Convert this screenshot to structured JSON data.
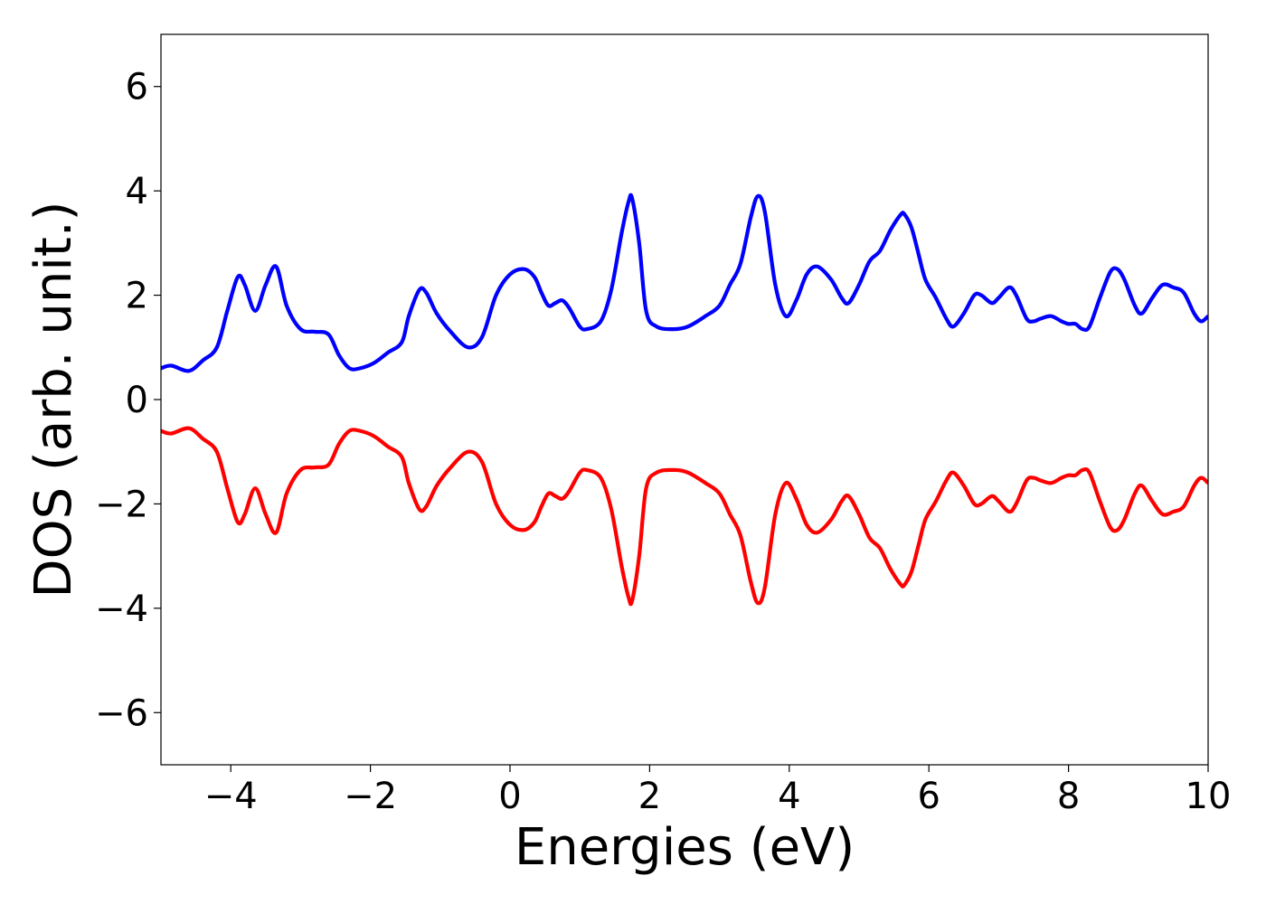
{
  "chart_data": {
    "type": "line",
    "title": "",
    "xlabel": "Energies (eV)",
    "ylabel": "DOS (arb. unit.)",
    "xlim": [
      -5,
      10
    ],
    "ylim": [
      -7,
      7
    ],
    "xticks": [
      -4,
      -2,
      0,
      2,
      4,
      6,
      8,
      10
    ],
    "yticks": [
      -6,
      -4,
      -2,
      0,
      2,
      4,
      6
    ],
    "xtick_labels": [
      "−4",
      "−2",
      "0",
      "2",
      "4",
      "6",
      "8",
      "10"
    ],
    "ytick_labels": [
      "−6",
      "−4",
      "−2",
      "0",
      "2",
      "4",
      "6"
    ],
    "grid": false,
    "legend": "none",
    "series": [
      {
        "color": "#0000ff",
        "x": [
          -5.0,
          -4.85,
          -4.6,
          -4.4,
          -4.2,
          -4.05,
          -3.9,
          -3.8,
          -3.65,
          -3.5,
          -3.35,
          -3.2,
          -3.0,
          -2.8,
          -2.6,
          -2.45,
          -2.3,
          -2.15,
          -1.95,
          -1.75,
          -1.55,
          -1.45,
          -1.3,
          -1.2,
          -1.05,
          -0.85,
          -0.6,
          -0.4,
          -0.2,
          0.0,
          0.2,
          0.35,
          0.45,
          0.55,
          0.65,
          0.75,
          0.85,
          1.0,
          1.1,
          1.3,
          1.45,
          1.6,
          1.7,
          1.75,
          1.85,
          1.95,
          2.1,
          2.35,
          2.55,
          2.8,
          3.0,
          3.15,
          3.3,
          3.45,
          3.55,
          3.65,
          3.8,
          3.95,
          4.1,
          4.25,
          4.4,
          4.6,
          4.75,
          4.85,
          5.0,
          5.15,
          5.3,
          5.45,
          5.6,
          5.65,
          5.75,
          5.85,
          5.95,
          6.1,
          6.25,
          6.35,
          6.5,
          6.65,
          6.75,
          6.9,
          7.0,
          7.15,
          7.25,
          7.4,
          7.5,
          7.6,
          7.75,
          7.9,
          8.0,
          8.1,
          8.2,
          8.3,
          8.45,
          8.6,
          8.7,
          8.8,
          8.95,
          9.05,
          9.2,
          9.35,
          9.5,
          9.65,
          9.8,
          9.9,
          10.0
        ],
        "y": [
          0.6,
          0.65,
          0.55,
          0.75,
          1.0,
          1.7,
          2.35,
          2.2,
          1.7,
          2.2,
          2.55,
          1.8,
          1.35,
          1.3,
          1.25,
          0.85,
          0.6,
          0.6,
          0.7,
          0.9,
          1.1,
          1.6,
          2.1,
          2.05,
          1.65,
          1.3,
          1.0,
          1.2,
          2.0,
          2.4,
          2.5,
          2.35,
          2.05,
          1.8,
          1.85,
          1.9,
          1.75,
          1.4,
          1.35,
          1.5,
          2.1,
          3.2,
          3.8,
          3.85,
          3.0,
          1.7,
          1.4,
          1.35,
          1.4,
          1.6,
          1.8,
          2.2,
          2.6,
          3.5,
          3.9,
          3.6,
          2.2,
          1.6,
          1.9,
          2.4,
          2.55,
          2.3,
          1.95,
          1.85,
          2.2,
          2.65,
          2.85,
          3.25,
          3.55,
          3.55,
          3.3,
          2.8,
          2.3,
          1.95,
          1.55,
          1.4,
          1.65,
          2.0,
          2.0,
          1.85,
          1.95,
          2.15,
          2.0,
          1.55,
          1.5,
          1.55,
          1.6,
          1.5,
          1.45,
          1.45,
          1.35,
          1.4,
          1.95,
          2.45,
          2.5,
          2.3,
          1.8,
          1.65,
          1.95,
          2.2,
          2.15,
          2.05,
          1.65,
          1.5,
          1.6
        ]
      },
      {
        "color": "#ff0000",
        "x": [
          -5.0,
          -4.85,
          -4.6,
          -4.4,
          -4.2,
          -4.05,
          -3.9,
          -3.8,
          -3.65,
          -3.5,
          -3.35,
          -3.2,
          -3.0,
          -2.8,
          -2.6,
          -2.45,
          -2.3,
          -2.15,
          -1.95,
          -1.75,
          -1.55,
          -1.45,
          -1.3,
          -1.2,
          -1.05,
          -0.85,
          -0.6,
          -0.4,
          -0.2,
          0.0,
          0.2,
          0.35,
          0.45,
          0.55,
          0.65,
          0.75,
          0.85,
          1.0,
          1.1,
          1.3,
          1.45,
          1.6,
          1.7,
          1.75,
          1.85,
          1.95,
          2.1,
          2.35,
          2.55,
          2.8,
          3.0,
          3.15,
          3.3,
          3.45,
          3.55,
          3.65,
          3.8,
          3.95,
          4.1,
          4.25,
          4.4,
          4.6,
          4.75,
          4.85,
          5.0,
          5.15,
          5.3,
          5.45,
          5.6,
          5.65,
          5.75,
          5.85,
          5.95,
          6.1,
          6.25,
          6.35,
          6.5,
          6.65,
          6.75,
          6.9,
          7.0,
          7.15,
          7.25,
          7.4,
          7.5,
          7.6,
          7.75,
          7.9,
          8.0,
          8.1,
          8.2,
          8.3,
          8.45,
          8.6,
          8.7,
          8.8,
          8.95,
          9.05,
          9.2,
          9.35,
          9.5,
          9.65,
          9.8,
          9.9,
          10.0
        ],
        "y": [
          -0.6,
          -0.65,
          -0.55,
          -0.75,
          -1.0,
          -1.7,
          -2.35,
          -2.2,
          -1.7,
          -2.2,
          -2.55,
          -1.8,
          -1.35,
          -1.3,
          -1.25,
          -0.85,
          -0.6,
          -0.6,
          -0.7,
          -0.9,
          -1.1,
          -1.6,
          -2.1,
          -2.05,
          -1.65,
          -1.3,
          -1.0,
          -1.2,
          -2.0,
          -2.4,
          -2.5,
          -2.35,
          -2.05,
          -1.8,
          -1.85,
          -1.9,
          -1.75,
          -1.4,
          -1.35,
          -1.5,
          -2.1,
          -3.2,
          -3.8,
          -3.85,
          -3.0,
          -1.7,
          -1.4,
          -1.35,
          -1.4,
          -1.6,
          -1.8,
          -2.2,
          -2.6,
          -3.5,
          -3.9,
          -3.6,
          -2.2,
          -1.6,
          -1.9,
          -2.4,
          -2.55,
          -2.3,
          -1.95,
          -1.85,
          -2.2,
          -2.65,
          -2.85,
          -3.25,
          -3.55,
          -3.55,
          -3.3,
          -2.8,
          -2.3,
          -1.95,
          -1.55,
          -1.4,
          -1.65,
          -2.0,
          -2.0,
          -1.85,
          -1.95,
          -2.15,
          -2.0,
          -1.55,
          -1.5,
          -1.55,
          -1.6,
          -1.5,
          -1.45,
          -1.45,
          -1.35,
          -1.4,
          -1.95,
          -2.45,
          -2.5,
          -2.3,
          -1.8,
          -1.65,
          -1.95,
          -2.2,
          -2.15,
          -2.05,
          -1.65,
          -1.5,
          -1.6
        ]
      }
    ]
  }
}
